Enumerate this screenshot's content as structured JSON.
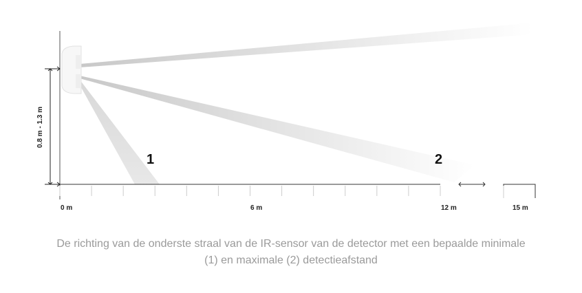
{
  "diagram": {
    "height_label": "0.8 m - 1.3 m",
    "zone_labels": [
      "1",
      "2"
    ],
    "distance_labels": {
      "start": "0 m",
      "mid": "6 m",
      "max": "12 m",
      "far": "15 m"
    }
  },
  "caption": {
    "line1": "De richting van de onderste straal van de IR-sensor van de detector met een bepaalde minimale",
    "line2": "(1) en maximale (2) detectieafstand"
  },
  "colors": {
    "beam": "#cfcfcf",
    "axis": "#333333",
    "caption": "#9a9a9a"
  }
}
